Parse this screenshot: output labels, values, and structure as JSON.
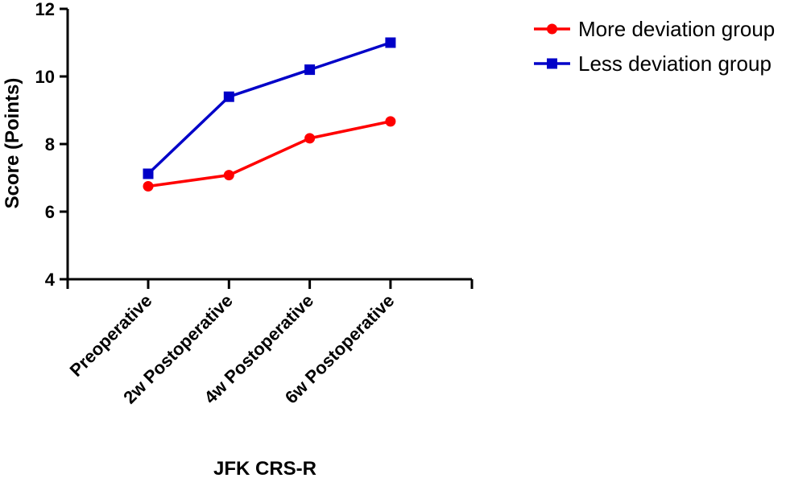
{
  "chart_data": {
    "type": "line",
    "title": "",
    "xlabel": "JFK CRS-R",
    "ylabel": "Score (Points)",
    "categories": [
      "Preoperative",
      "2w Postoperative",
      "4w Postoperative",
      "6w Postoperative"
    ],
    "ylim": [
      4,
      12
    ],
    "yticks": [
      4,
      6,
      8,
      10,
      12
    ],
    "grid": false,
    "legend_position": "top-right",
    "series": [
      {
        "name": "More deviation group",
        "values": [
          6.75,
          7.08,
          8.17,
          8.67
        ],
        "color": "#ff0000",
        "marker": "circle"
      },
      {
        "name": "Less deviation group",
        "values": [
          7.12,
          9.4,
          10.2,
          11.0
        ],
        "color": "#0000c8",
        "marker": "square"
      }
    ]
  }
}
